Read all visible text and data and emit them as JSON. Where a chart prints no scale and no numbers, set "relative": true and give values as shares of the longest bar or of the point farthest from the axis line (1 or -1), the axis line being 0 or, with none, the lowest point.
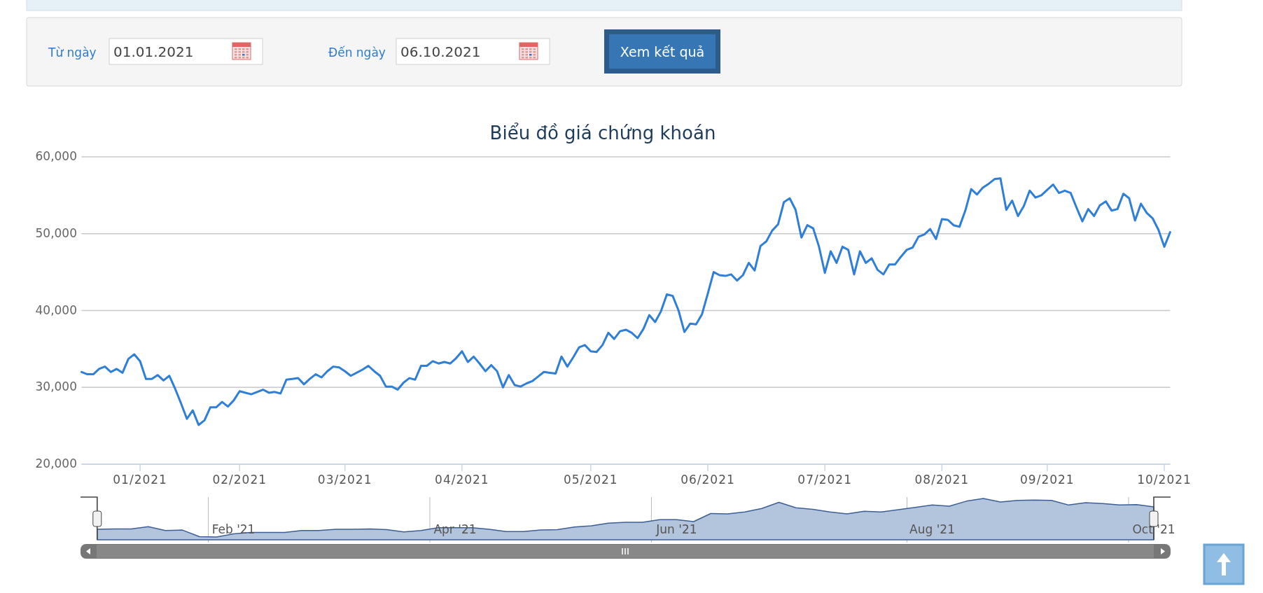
{
  "chart_data": [
    {
      "type": "line",
      "title": "Biểu đồ giá chứng khoán",
      "color": "#2f7ed8",
      "grid": "y",
      "ylim": [
        20000,
        60000
      ],
      "yticks": [
        {
          "value": 20000,
          "label": "20,000"
        },
        {
          "value": 30000,
          "label": "30,000"
        },
        {
          "value": 40000,
          "label": "40,000"
        },
        {
          "value": 50000,
          "label": "50,000"
        },
        {
          "value": 60000,
          "label": "60,000"
        }
      ],
      "annotations": [
        "Từ ngày",
        "01.01.2021",
        "Đến ngày",
        "06.10.2021",
        "Xem kết quả"
      ],
      "categories": [
        null,
        null,
        null,
        null,
        null,
        null,
        null,
        null,
        null,
        null,
        "01/2021",
        null,
        null,
        null,
        null,
        null,
        null,
        null,
        null,
        null,
        null,
        null,
        null,
        null,
        null,
        null,
        null,
        "02/2021",
        null,
        null,
        null,
        null,
        null,
        null,
        null,
        null,
        null,
        null,
        null,
        null,
        null,
        null,
        null,
        null,
        null,
        "03/2021",
        null,
        null,
        null,
        null,
        null,
        null,
        null,
        null,
        null,
        null,
        null,
        null,
        null,
        null,
        null,
        null,
        null,
        null,
        null,
        "04/2021",
        null,
        null,
        null,
        null,
        null,
        null,
        null,
        null,
        null,
        null,
        null,
        null,
        null,
        null,
        null,
        null,
        null,
        null,
        null,
        null,
        null,
        "05/2021",
        null,
        null,
        null,
        null,
        null,
        null,
        null,
        null,
        null,
        null,
        null,
        null,
        null,
        null,
        null,
        null,
        null,
        null,
        null,
        "06/2021",
        null,
        null,
        null,
        null,
        null,
        null,
        null,
        null,
        null,
        null,
        null,
        null,
        null,
        null,
        null,
        null,
        null,
        null,
        null,
        "07/2021",
        null,
        null,
        null,
        null,
        null,
        null,
        null,
        null,
        null,
        null,
        null,
        null,
        null,
        null,
        null,
        null,
        null,
        null,
        null,
        "08/2021",
        null,
        null,
        null,
        null,
        null,
        null,
        null,
        null,
        null,
        null,
        null,
        null,
        null,
        null,
        null,
        null,
        null,
        "09/2021",
        null,
        null,
        null,
        null,
        null,
        null,
        null,
        null,
        null,
        null,
        null,
        null,
        null,
        null,
        null,
        null,
        null,
        null,
        null,
        "10/2021",
        null
      ],
      "values": [
        32000,
        31700,
        31700,
        32400,
        32700,
        32000,
        32400,
        31900,
        33700,
        34300,
        33400,
        31100,
        31100,
        31600,
        30900,
        31500,
        29800,
        27900,
        25900,
        27000,
        25100,
        25700,
        27400,
        27400,
        28100,
        27500,
        28300,
        29500,
        29300,
        29100,
        29400,
        29700,
        29300,
        29400,
        29200,
        31000,
        31100,
        31200,
        30400,
        31100,
        31700,
        31300,
        32100,
        32700,
        32600,
        32100,
        31500,
        31900,
        32300,
        32800,
        32100,
        31500,
        30100,
        30100,
        29700,
        30600,
        31200,
        31000,
        32800,
        32800,
        33400,
        33100,
        33300,
        33100,
        33800,
        34700,
        33300,
        34000,
        33100,
        32100,
        32900,
        32100,
        30000,
        31600,
        30300,
        30100,
        30500,
        30800,
        31400,
        32000,
        31900,
        31800,
        34000,
        32700,
        33900,
        35200,
        35500,
        34700,
        34600,
        35500,
        37100,
        36300,
        37300,
        37500,
        37100,
        36400,
        37600,
        39400,
        38500,
        39900,
        42100,
        41900,
        40000,
        37200,
        38300,
        38200,
        39500,
        42200,
        45000,
        44600,
        44500,
        44700,
        43900,
        44600,
        46200,
        45200,
        48400,
        49000,
        50400,
        51200,
        54100,
        54600,
        53100,
        49500,
        51100,
        50700,
        48300,
        44900,
        47700,
        46200,
        48300,
        47900,
        44700,
        47700,
        46200,
        46800,
        45300,
        44700,
        46000,
        46000,
        47000,
        47900,
        48200,
        49600,
        49900,
        50600,
        49300,
        51900,
        51800,
        51100,
        50900,
        53000,
        55800,
        55100,
        56000,
        56500,
        57100,
        57200,
        53100,
        54300,
        52300,
        53600,
        55600,
        54700,
        55000,
        55700,
        56400,
        55300,
        55600,
        55300,
        53400,
        51600,
        53200,
        52300,
        53700,
        54200,
        53000,
        53200,
        55200,
        54600,
        51700,
        53900,
        52700,
        52000,
        50500,
        48300,
        50200
      ]
    },
    {
      "type": "area",
      "relative": true,
      "color": "#b3c4dd",
      "grid": "x",
      "categories": [
        null,
        null,
        null,
        null,
        null,
        null,
        null,
        null,
        "Feb '21",
        null,
        null,
        null,
        null,
        null,
        null,
        null,
        null,
        null,
        null,
        null,
        null,
        "Apr '21",
        null,
        null,
        null,
        null,
        null,
        null,
        null,
        null,
        null,
        null,
        null,
        null,
        "Jun '21",
        null,
        null,
        null,
        null,
        null,
        null,
        null,
        null,
        null,
        null,
        null,
        null,
        null,
        null,
        "Aug '21",
        null,
        null,
        null,
        null,
        null,
        null,
        null,
        null,
        null,
        null,
        null,
        null,
        "Oct '21"
      ],
      "values": [
        0.2,
        0.21,
        0.21,
        0.27,
        0.17,
        0.18,
        0.01,
        0,
        0.08,
        0.12,
        0.12,
        0.12,
        0.17,
        0.17,
        0.2,
        0.2,
        0.21,
        0.19,
        0.13,
        0.17,
        0.24,
        0.24,
        0.24,
        0.2,
        0.14,
        0.14,
        0.18,
        0.19,
        0.26,
        0.29,
        0.36,
        0.38,
        0.38,
        0.45,
        0.45,
        0.4,
        0.61,
        0.6,
        0.65,
        0.74,
        0.9,
        0.76,
        0.72,
        0.65,
        0.6,
        0.67,
        0.65,
        0.71,
        0.77,
        0.83,
        0.8,
        0.93,
        1,
        0.91,
        0.95,
        0.96,
        0.95,
        0.83,
        0.89,
        0.87,
        0.83,
        0.84,
        0.78
      ]
    }
  ]
}
